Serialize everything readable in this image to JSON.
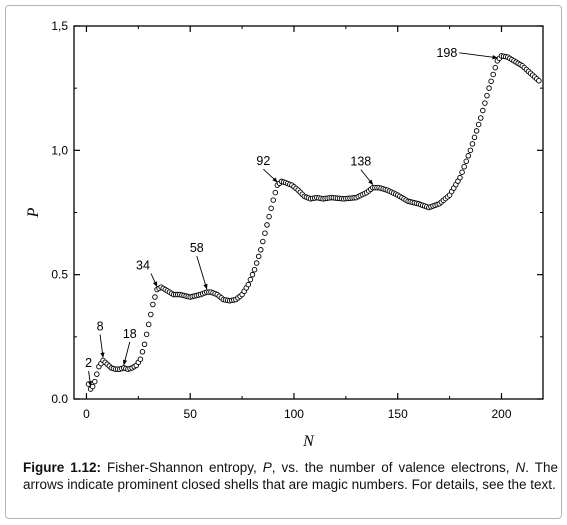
{
  "chart_data": {
    "type": "scatter",
    "title": "",
    "xlabel": "N",
    "ylabel": "P",
    "xlim": [
      -6,
      220
    ],
    "ylim": [
      0.0,
      1.5
    ],
    "x_ticks": [
      0,
      50,
      100,
      150,
      200
    ],
    "x_tick_labels": [
      "0",
      "50",
      "100",
      "150",
      "200"
    ],
    "y_ticks": [
      0.0,
      0.5,
      1.0,
      1.5
    ],
    "y_tick_labels": [
      "0.0",
      "0.5",
      "1,0",
      "1,5"
    ],
    "grid": false,
    "marker": "open-circle",
    "curve_points": [
      [
        1,
        0.06
      ],
      [
        2,
        0.04
      ],
      [
        3,
        0.05
      ],
      [
        4,
        0.07
      ],
      [
        5,
        0.1
      ],
      [
        6,
        0.13
      ],
      [
        8,
        0.155
      ],
      [
        10,
        0.14
      ],
      [
        12,
        0.125
      ],
      [
        14,
        0.12
      ],
      [
        16,
        0.12
      ],
      [
        18,
        0.125
      ],
      [
        20,
        0.12
      ],
      [
        22,
        0.125
      ],
      [
        24,
        0.135
      ],
      [
        26,
        0.16
      ],
      [
        28,
        0.22
      ],
      [
        30,
        0.3
      ],
      [
        32,
        0.38
      ],
      [
        34,
        0.44
      ],
      [
        36,
        0.45
      ],
      [
        38,
        0.44
      ],
      [
        40,
        0.43
      ],
      [
        42,
        0.42
      ],
      [
        45,
        0.42
      ],
      [
        50,
        0.41
      ],
      [
        55,
        0.42
      ],
      [
        58,
        0.43
      ],
      [
        60,
        0.43
      ],
      [
        63,
        0.42
      ],
      [
        66,
        0.4
      ],
      [
        69,
        0.395
      ],
      [
        72,
        0.4
      ],
      [
        75,
        0.42
      ],
      [
        78,
        0.46
      ],
      [
        81,
        0.52
      ],
      [
        84,
        0.6
      ],
      [
        87,
        0.7
      ],
      [
        90,
        0.8
      ],
      [
        92,
        0.86
      ],
      [
        94,
        0.875
      ],
      [
        96,
        0.87
      ],
      [
        99,
        0.86
      ],
      [
        102,
        0.84
      ],
      [
        105,
        0.815
      ],
      [
        108,
        0.805
      ],
      [
        111,
        0.81
      ],
      [
        114,
        0.805
      ],
      [
        118,
        0.81
      ],
      [
        124,
        0.805
      ],
      [
        130,
        0.81
      ],
      [
        135,
        0.83
      ],
      [
        138,
        0.85
      ],
      [
        141,
        0.85
      ],
      [
        145,
        0.84
      ],
      [
        150,
        0.82
      ],
      [
        155,
        0.795
      ],
      [
        160,
        0.785
      ],
      [
        165,
        0.77
      ],
      [
        170,
        0.785
      ],
      [
        175,
        0.82
      ],
      [
        180,
        0.89
      ],
      [
        185,
        1.0
      ],
      [
        190,
        1.13
      ],
      [
        194,
        1.25
      ],
      [
        198,
        1.36
      ],
      [
        200,
        1.38
      ],
      [
        203,
        1.375
      ],
      [
        206,
        1.36
      ],
      [
        210,
        1.34
      ],
      [
        214,
        1.31
      ],
      [
        218,
        1.28
      ]
    ],
    "annotations": [
      {
        "label": "2",
        "n": 2,
        "p": 0.04
      },
      {
        "label": "8",
        "n": 8,
        "p": 0.155
      },
      {
        "label": "18",
        "n": 18,
        "p": 0.125
      },
      {
        "label": "34",
        "n": 34,
        "p": 0.44
      },
      {
        "label": "58",
        "n": 58,
        "p": 0.43
      },
      {
        "label": "92",
        "n": 92,
        "p": 0.86
      },
      {
        "label": "138",
        "n": 138,
        "p": 0.85
      },
      {
        "label": "198",
        "n": 198,
        "p": 1.36
      }
    ]
  },
  "caption": {
    "figure_label": "Figure 1.12:",
    "text_1": " Fisher-Shannon entropy, ",
    "italic_p": "P",
    "text_2": ", vs. the number of valence electrons, ",
    "italic_n": "N",
    "text_3": ". The arrows indicate prominent closed shells that are magic numbers. For details, see the text."
  }
}
